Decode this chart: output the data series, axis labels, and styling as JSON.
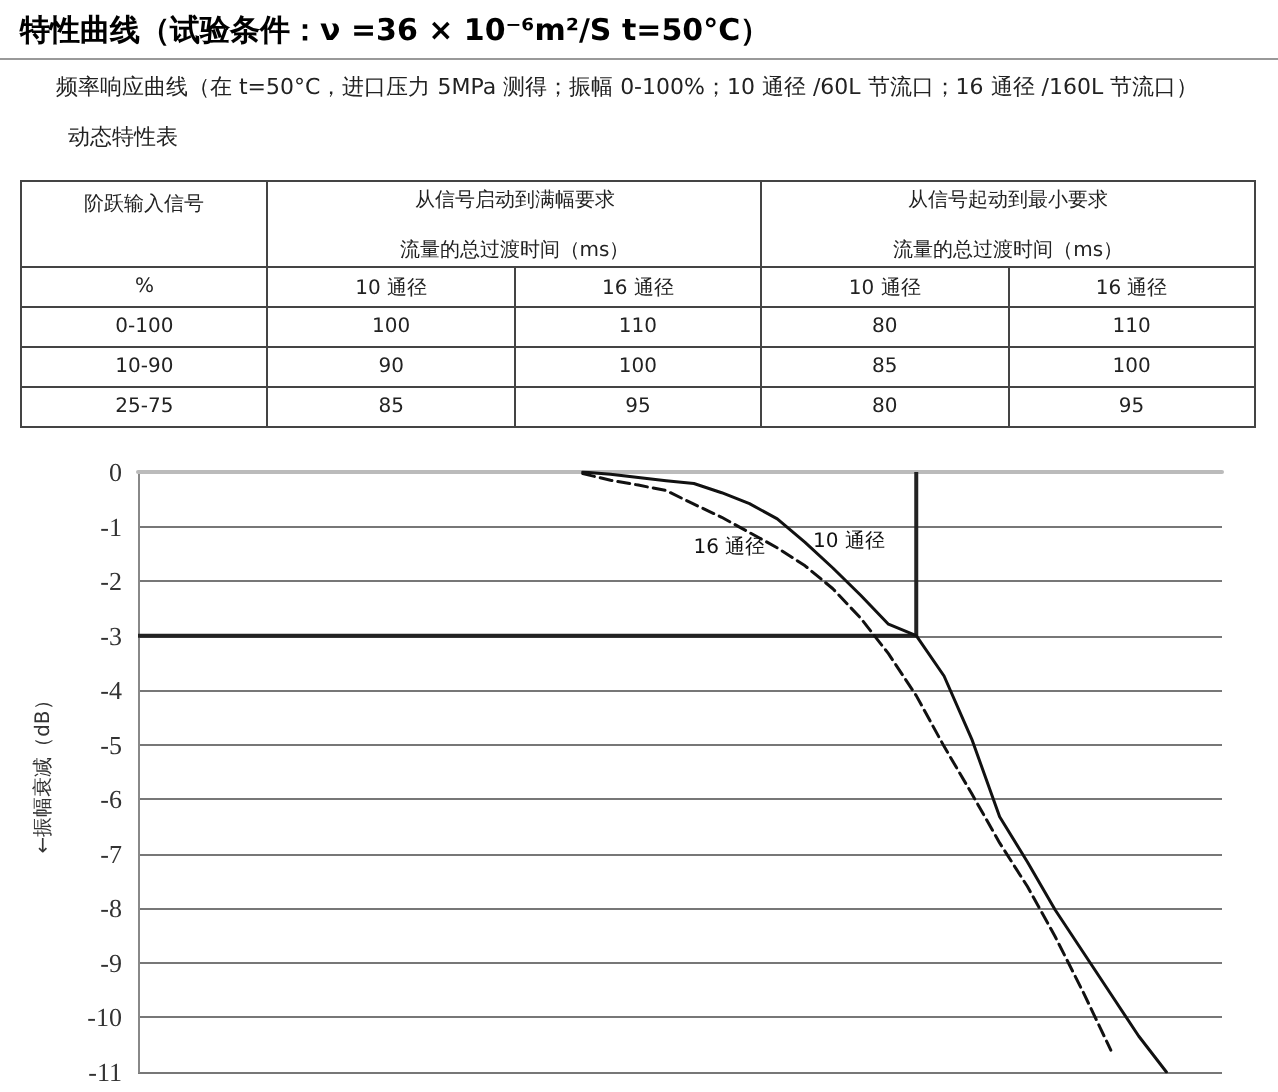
{
  "chart_data": [
    {
      "type": "other",
      "title": "特性曲线（试验条件：ν =36 × 10⁻⁶m²/S  t=50°C）",
      "subtitle": "频率响应曲线（在 t=50°C，进口压力 5MPa 测得；振幅 0-100%；10 通径 /60L 节流口；16 通径 /160L 节流口）",
      "annotations": [
        "动态特性表",
        "阶跃输入信号",
        "从信号启动到满幅要求",
        "流量的总过渡时间（ms）",
        "从信号起动到最小要求",
        "流量的总过渡时间（ms）",
        "%",
        "10 通径",
        "16 通径",
        "10 通径",
        "16 通径",
        "0-100",
        "100",
        "110",
        "80",
        "110",
        "10-90",
        "90",
        "100",
        "85",
        "100",
        "25-75",
        "85",
        "95",
        "80",
        "95"
      ]
    },
    {
      "type": "line",
      "ylabel": "←振幅衰减（dB）",
      "categories": [
        null,
        null,
        null,
        null,
        null,
        null,
        null,
        null,
        null,
        null,
        null,
        null,
        null,
        null,
        null,
        null,
        null,
        null,
        null,
        null,
        null,
        null,
        null,
        null,
        null,
        null,
        null,
        null,
        null,
        null,
        null,
        null,
        null,
        null,
        null,
        null,
        null,
        null,
        null,
        null
      ],
      "ylim": [
        -11,
        0
      ],
      "yticks": [
        -11,
        -10,
        -9,
        -8,
        -7,
        -6,
        -5,
        -4,
        -3,
        -2,
        -1,
        0
      ],
      "tick_labels": "y",
      "grid": "y",
      "marker": "none",
      "ref_lines": [
        {
          "axis": "y",
          "value": -3,
          "label": null,
          "color": "#222222"
        }
      ],
      "series": [
        {
          "name": "10 通径",
          "color": "#111111",
          "line_style": "solid",
          "values": [
            null,
            null,
            null,
            null,
            null,
            null,
            null,
            null,
            null,
            null,
            null,
            null,
            null,
            null,
            null,
            null,
            0,
            -0.04,
            -0.1,
            -0.16,
            -0.21,
            -0.38,
            -0.58,
            -0.86,
            -1.29,
            -1.76,
            -2.26,
            -2.79,
            -3,
            -3.74,
            -4.9,
            -6.32,
            -7.15,
            -8.03,
            -8.8,
            -9.57,
            -10.34,
            -11,
            null,
            null
          ]
        },
        {
          "name": "16 通径",
          "color": "#111111",
          "line_style": "dashed",
          "values": [
            null,
            null,
            null,
            null,
            null,
            null,
            null,
            null,
            null,
            null,
            null,
            null,
            null,
            null,
            null,
            null,
            -0.03,
            -0.15,
            -0.24,
            -0.34,
            -0.59,
            -0.83,
            -1.11,
            -1.39,
            -1.72,
            -2.14,
            -2.68,
            -3.33,
            -4.1,
            -5.03,
            -5.9,
            -6.8,
            -7.6,
            -8.52,
            -9.53,
            -10.6,
            null,
            null,
            null,
            null
          ]
        }
      ]
    }
  ]
}
